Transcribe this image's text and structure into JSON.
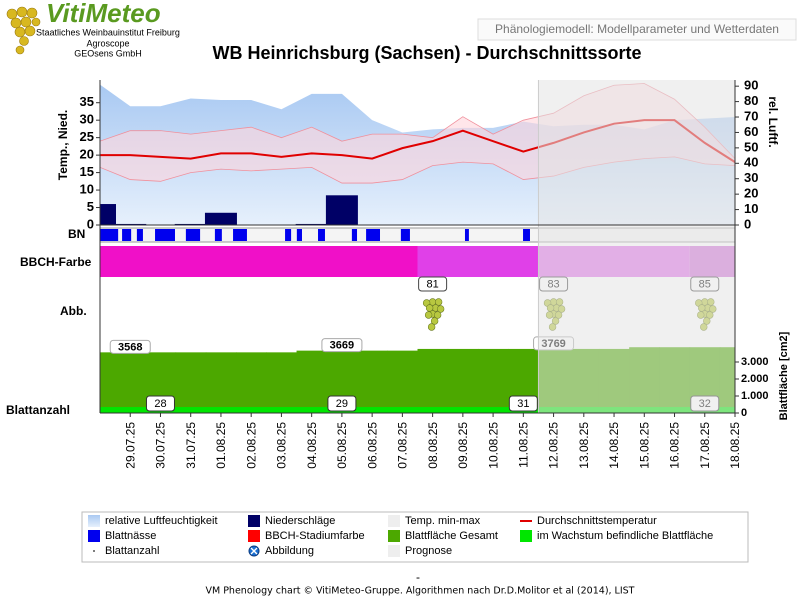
{
  "header": {
    "brand": "VitiMeteo",
    "institute_lines": [
      "Staatliches Weinbauinstitut Freiburg",
      "Agroscope",
      "GEOsens GmbH"
    ],
    "tab": "Phänologiemodell: Modellparameter und Wetterdaten"
  },
  "chart_data": {
    "type": "phenology",
    "title": "WB Heinrichsburg (Sachsen) - Durchschnittssorte",
    "categories": [
      null,
      "29.07.25",
      "30.07.25",
      "31.07.25",
      "01.08.25",
      "02.08.25",
      "03.08.25",
      "04.08.25",
      "05.08.25",
      "06.08.25",
      "07.08.25",
      "08.08.25",
      "09.08.25",
      "10.08.25",
      "11.08.25",
      "12.08.25",
      "13.08.25",
      "14.08.25",
      "15.08.25",
      "16.08.25",
      "17.08.25",
      "18.08.25"
    ],
    "forecast_from": "12.08.25",
    "ylabel": "Temp., Nied.",
    "ylim": [
      0,
      41.5
    ],
    "yticks": [
      0,
      5,
      10,
      15,
      20,
      25,
      30,
      35
    ],
    "y2label": "rel. Luftf.",
    "y2lim": [
      0,
      94
    ],
    "y2ticks": [
      0,
      10,
      20,
      30,
      40,
      50,
      60,
      70,
      80,
      90
    ],
    "humidity": {
      "axis": "y2",
      "color": "#a9c9f2",
      "values": [
        91,
        77,
        77,
        82,
        81,
        81,
        75,
        85,
        85,
        68,
        60,
        62,
        63,
        63,
        67,
        64,
        65,
        65,
        62,
        68,
        69,
        70
      ]
    },
    "temp_band_color": "#ffd6dc",
    "temp_max": {
      "color": "#f0909c",
      "values": [
        24,
        27,
        27,
        26,
        27,
        28,
        25,
        28,
        24,
        26,
        26,
        25,
        31,
        26,
        30,
        32,
        37,
        40,
        40.5,
        36,
        28,
        19
      ]
    },
    "temp_min": {
      "color": "#f0909c",
      "values": [
        16.5,
        13,
        12.5,
        15,
        16,
        15.5,
        16,
        16.5,
        12,
        12,
        13,
        17,
        18,
        17.5,
        13,
        14,
        16.5,
        18,
        19,
        19.5,
        17.5,
        17
      ]
    },
    "temp_mean": {
      "color": "#e00000",
      "values": [
        20,
        20,
        19.5,
        19,
        20.5,
        20.5,
        19.5,
        20.5,
        20,
        19,
        22,
        24,
        27,
        24,
        21,
        23.5,
        26.5,
        29,
        30,
        30,
        23.5,
        18
      ]
    },
    "precipitation": {
      "color": "#000066",
      "values": [
        6,
        0.3,
        0,
        0.3,
        3.5,
        0,
        0,
        0.3,
        8.5,
        0,
        0,
        0,
        0,
        0,
        0,
        0,
        0,
        0,
        0,
        0,
        0,
        0
      ]
    },
    "leaf_wetness": {
      "label": "BN",
      "color": "#0000ee",
      "periods": [
        [
          0,
          0.6
        ],
        [
          0.73,
          1.03
        ],
        [
          1.22,
          1.42
        ],
        [
          1.82,
          2.48
        ],
        [
          2.84,
          3.31
        ],
        [
          3.8,
          4.03
        ],
        [
          4.4,
          4.86
        ],
        [
          6.12,
          6.32
        ],
        [
          6.51,
          6.68
        ],
        [
          7.21,
          7.44
        ],
        [
          8.33,
          8.5
        ],
        [
          8.8,
          9.26
        ],
        [
          9.95,
          10.25
        ],
        [
          12.07,
          12.2
        ],
        [
          13.99,
          14.22
        ]
      ]
    },
    "bbch": {
      "label": "BBCH-Farbe",
      "bands": [
        {
          "color": "#f010c8",
          "until": "07.08.25"
        },
        {
          "color": "#e040e8",
          "until": "11.08.25"
        },
        {
          "color": "#e070e8",
          "until": "16.08.25"
        },
        {
          "color": "#d070d8",
          "until": "18.08.25"
        }
      ]
    },
    "stages": {
      "label": "Abb.",
      "points": [
        {
          "x": "08.08.25",
          "value": 81
        },
        {
          "x": "12.08.25",
          "value": 83
        },
        {
          "x": "17.08.25",
          "value": 85
        }
      ]
    },
    "leaf_area": {
      "axis_label": "Blattfläche [cm2]",
      "color": "#4ca800",
      "ylim": [
        0,
        4000
      ],
      "yticks": [
        0,
        {
          "value": 1000,
          "label": "1.000"
        },
        {
          "value": 2000,
          "label": "2.000"
        },
        {
          "value": 3000,
          "label": "3.000"
        }
      ],
      "values": [
        3568,
        3568,
        3568,
        3568,
        3568,
        3568,
        3568,
        3669,
        3669,
        3669,
        3669,
        3769,
        3769,
        3769,
        3769,
        3769,
        3769,
        3769,
        3870,
        3870,
        3870,
        3870
      ],
      "labels": [
        {
          "x": "29.07.25",
          "value": 3568
        },
        {
          "x": "05.08.25",
          "value": 3669
        },
        {
          "x": "12.08.25",
          "value": 3769
        }
      ]
    },
    "growing_leaf_area": {
      "color": "#00e600",
      "values": [
        350,
        350,
        350,
        350,
        350,
        350,
        350,
        350,
        350,
        350,
        350,
        350,
        350,
        350,
        350,
        350,
        350,
        350,
        350,
        350,
        350,
        350
      ]
    },
    "leaf_count": {
      "label": "Blattanzahl",
      "points": [
        {
          "x": "30.07.25",
          "value": 28
        },
        {
          "x": "05.08.25",
          "value": 29
        },
        {
          "x": "11.08.25",
          "value": 31
        },
        {
          "x": "17.08.25",
          "value": 32
        }
      ]
    },
    "legend": [
      {
        "name": "relative Luftfeuchtigkeit",
        "color": "#a9c9f2",
        "symbol": "area"
      },
      {
        "name": "Niederschläge",
        "color": "#000066",
        "symbol": "box"
      },
      {
        "name": "Temp. min-max",
        "color": "#eeeeee",
        "symbol": "box"
      },
      {
        "name": "Durchschnittstemperatur",
        "color": "#e00000",
        "symbol": "line"
      },
      {
        "name": "Blattnässe",
        "color": "#0000ee",
        "symbol": "box"
      },
      {
        "name": "BBCH-Stadiumfarbe",
        "color": "#ff0000",
        "symbol": "box"
      },
      {
        "name": "Blattfläche Gesamt",
        "color": "#4ca800",
        "symbol": "box"
      },
      {
        "name": "im Wachstum befindliche Blattfläche",
        "color": "#00e600",
        "symbol": "box"
      },
      {
        "name": "Blattanzahl",
        "color": "#555555",
        "symbol": "dot"
      },
      {
        "name": "Abbildung",
        "color": "#1a6fd0",
        "symbol": "circle"
      },
      {
        "name": "Prognose",
        "color": "#eeeeee",
        "symbol": "box"
      }
    ],
    "footer_dash": "-",
    "footer": "VM Phenology chart © VitiMeteo-Gruppe. Algorithmen nach Dr.D.Molitor et al (2014), LIST"
  }
}
